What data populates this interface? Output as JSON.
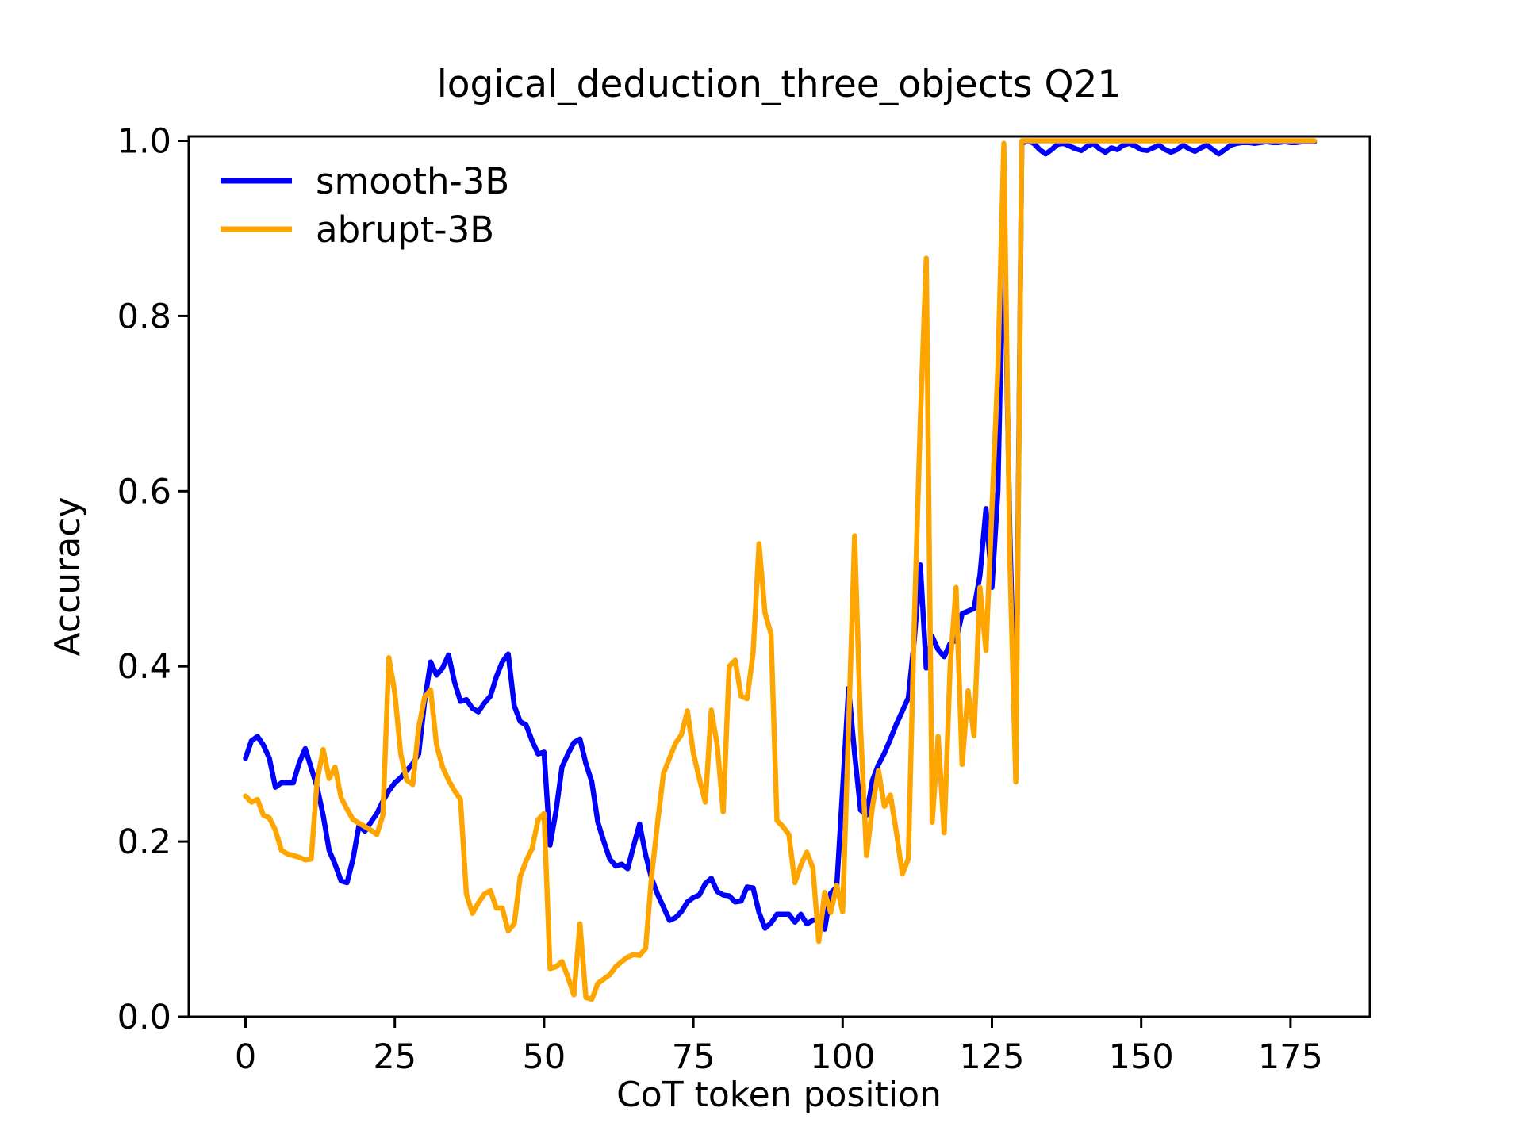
{
  "title": "logical_deduction_three_objects Q21",
  "axes": {
    "xlabel": "CoT token position",
    "ylabel": "Accuracy"
  },
  "legend": {
    "items": [
      {
        "label": "smooth-3B",
        "color": "#0000ff"
      },
      {
        "label": "abrupt-3B",
        "color": "#ffa500"
      }
    ]
  },
  "chart_data": {
    "type": "line",
    "title": "logical_deduction_three_objects Q21",
    "xlabel": "CoT token position",
    "ylabel": "Accuracy",
    "grid": false,
    "legend_position": "upper left",
    "xlim": [
      -9.5,
      188.3
    ],
    "ylim": [
      0,
      1.005
    ],
    "xticks": [
      0,
      25,
      50,
      75,
      100,
      125,
      150,
      175
    ],
    "xticklabels": [
      "0",
      "25",
      "50",
      "75",
      "100",
      "125",
      "150",
      "175"
    ],
    "yticks": [
      0.0,
      0.2,
      0.4,
      0.6,
      0.8,
      1.0
    ],
    "yticklabels": [
      "0.0",
      "0.2",
      "0.4",
      "0.6",
      "0.8",
      "1.0"
    ],
    "x_start": 0,
    "x_step": 1,
    "series": [
      {
        "name": "smooth-3B",
        "color": "#0000ff",
        "values": [
          0.295,
          0.315,
          0.32,
          0.31,
          0.295,
          0.262,
          0.267,
          0.267,
          0.267,
          0.29,
          0.306,
          0.284,
          0.262,
          0.23,
          0.19,
          0.174,
          0.155,
          0.153,
          0.18,
          0.218,
          0.212,
          0.222,
          0.232,
          0.246,
          0.258,
          0.267,
          0.273,
          0.281,
          0.289,
          0.3,
          0.36,
          0.405,
          0.39,
          0.398,
          0.413,
          0.382,
          0.36,
          0.362,
          0.352,
          0.348,
          0.358,
          0.366,
          0.388,
          0.405,
          0.414,
          0.355,
          0.337,
          0.333,
          0.315,
          0.3,
          0.302,
          0.196,
          0.235,
          0.285,
          0.3,
          0.313,
          0.317,
          0.289,
          0.268,
          0.222,
          0.2,
          0.18,
          0.172,
          0.174,
          0.169,
          0.195,
          0.22,
          0.185,
          0.158,
          0.14,
          0.125,
          0.11,
          0.113,
          0.12,
          0.131,
          0.136,
          0.139,
          0.152,
          0.158,
          0.143,
          0.139,
          0.138,
          0.131,
          0.132,
          0.148,
          0.147,
          0.119,
          0.101,
          0.107,
          0.117,
          0.117,
          0.117,
          0.108,
          0.117,
          0.106,
          0.11,
          0.112,
          0.1,
          0.141,
          0.148,
          0.26,
          0.375,
          0.3,
          0.236,
          0.23,
          0.27,
          0.288,
          0.301,
          0.317,
          0.334,
          0.349,
          0.364,
          0.43,
          0.516,
          0.398,
          0.434,
          0.419,
          0.411,
          0.426,
          0.43,
          0.46,
          0.463,
          0.466,
          0.504,
          0.58,
          0.49,
          0.6,
          0.922,
          0.55,
          0.3,
          0.997,
          1.0,
          0.997,
          0.99,
          0.985,
          0.99,
          0.996,
          0.997,
          0.994,
          0.991,
          0.989,
          0.994,
          0.997,
          0.991,
          0.987,
          0.992,
          0.99,
          0.995,
          0.997,
          0.994,
          0.99,
          0.989,
          0.992,
          0.995,
          0.99,
          0.987,
          0.99,
          0.995,
          0.991,
          0.988,
          0.992,
          0.995,
          0.99,
          0.985,
          0.99,
          0.995,
          0.997,
          0.998,
          0.998,
          0.997,
          0.998,
          0.999,
          0.998,
          0.998,
          0.999,
          0.998,
          0.998,
          0.999,
          0.999,
          0.999
        ]
      },
      {
        "name": "abrupt-3B",
        "color": "#ffa500",
        "values": [
          0.252,
          0.245,
          0.248,
          0.23,
          0.227,
          0.213,
          0.19,
          0.186,
          0.184,
          0.182,
          0.179,
          0.18,
          0.27,
          0.305,
          0.272,
          0.285,
          0.25,
          0.237,
          0.225,
          0.221,
          0.217,
          0.213,
          0.208,
          0.23,
          0.41,
          0.37,
          0.3,
          0.27,
          0.265,
          0.33,
          0.365,
          0.373,
          0.31,
          0.285,
          0.27,
          0.258,
          0.248,
          0.14,
          0.118,
          0.13,
          0.14,
          0.144,
          0.124,
          0.124,
          0.098,
          0.106,
          0.16,
          0.178,
          0.192,
          0.225,
          0.232,
          0.055,
          0.057,
          0.063,
          0.045,
          0.025,
          0.106,
          0.022,
          0.02,
          0.038,
          0.043,
          0.048,
          0.057,
          0.063,
          0.068,
          0.071,
          0.07,
          0.078,
          0.16,
          0.221,
          0.278,
          0.295,
          0.312,
          0.322,
          0.349,
          0.301,
          0.272,
          0.245,
          0.35,
          0.31,
          0.234,
          0.4,
          0.407,
          0.366,
          0.363,
          0.415,
          0.54,
          0.461,
          0.437,
          0.224,
          0.217,
          0.208,
          0.153,
          0.173,
          0.188,
          0.17,
          0.086,
          0.142,
          0.119,
          0.15,
          0.12,
          0.33,
          0.549,
          0.33,
          0.184,
          0.24,
          0.281,
          0.24,
          0.253,
          0.211,
          0.163,
          0.18,
          0.45,
          0.68,
          0.866,
          0.222,
          0.32,
          0.21,
          0.4,
          0.49,
          0.288,
          0.372,
          0.321,
          0.49,
          0.418,
          0.58,
          0.74,
          0.997,
          0.52,
          0.268,
          1.0,
          1.0,
          1.0,
          1.0,
          1.0,
          1.0,
          1.0,
          1.0,
          1.0,
          1.0,
          1.0,
          1.0,
          1.0,
          1.0,
          1.0,
          1.0,
          1.0,
          1.0,
          1.0,
          1.0,
          1.0,
          1.0,
          1.0,
          1.0,
          1.0,
          1.0,
          1.0,
          1.0,
          1.0,
          1.0,
          1.0,
          1.0,
          1.0,
          1.0,
          1.0,
          1.0,
          1.0,
          1.0,
          1.0,
          1.0,
          1.0,
          1.0,
          1.0,
          1.0,
          1.0,
          1.0,
          1.0,
          1.0,
          1.0,
          1.0
        ]
      }
    ]
  }
}
